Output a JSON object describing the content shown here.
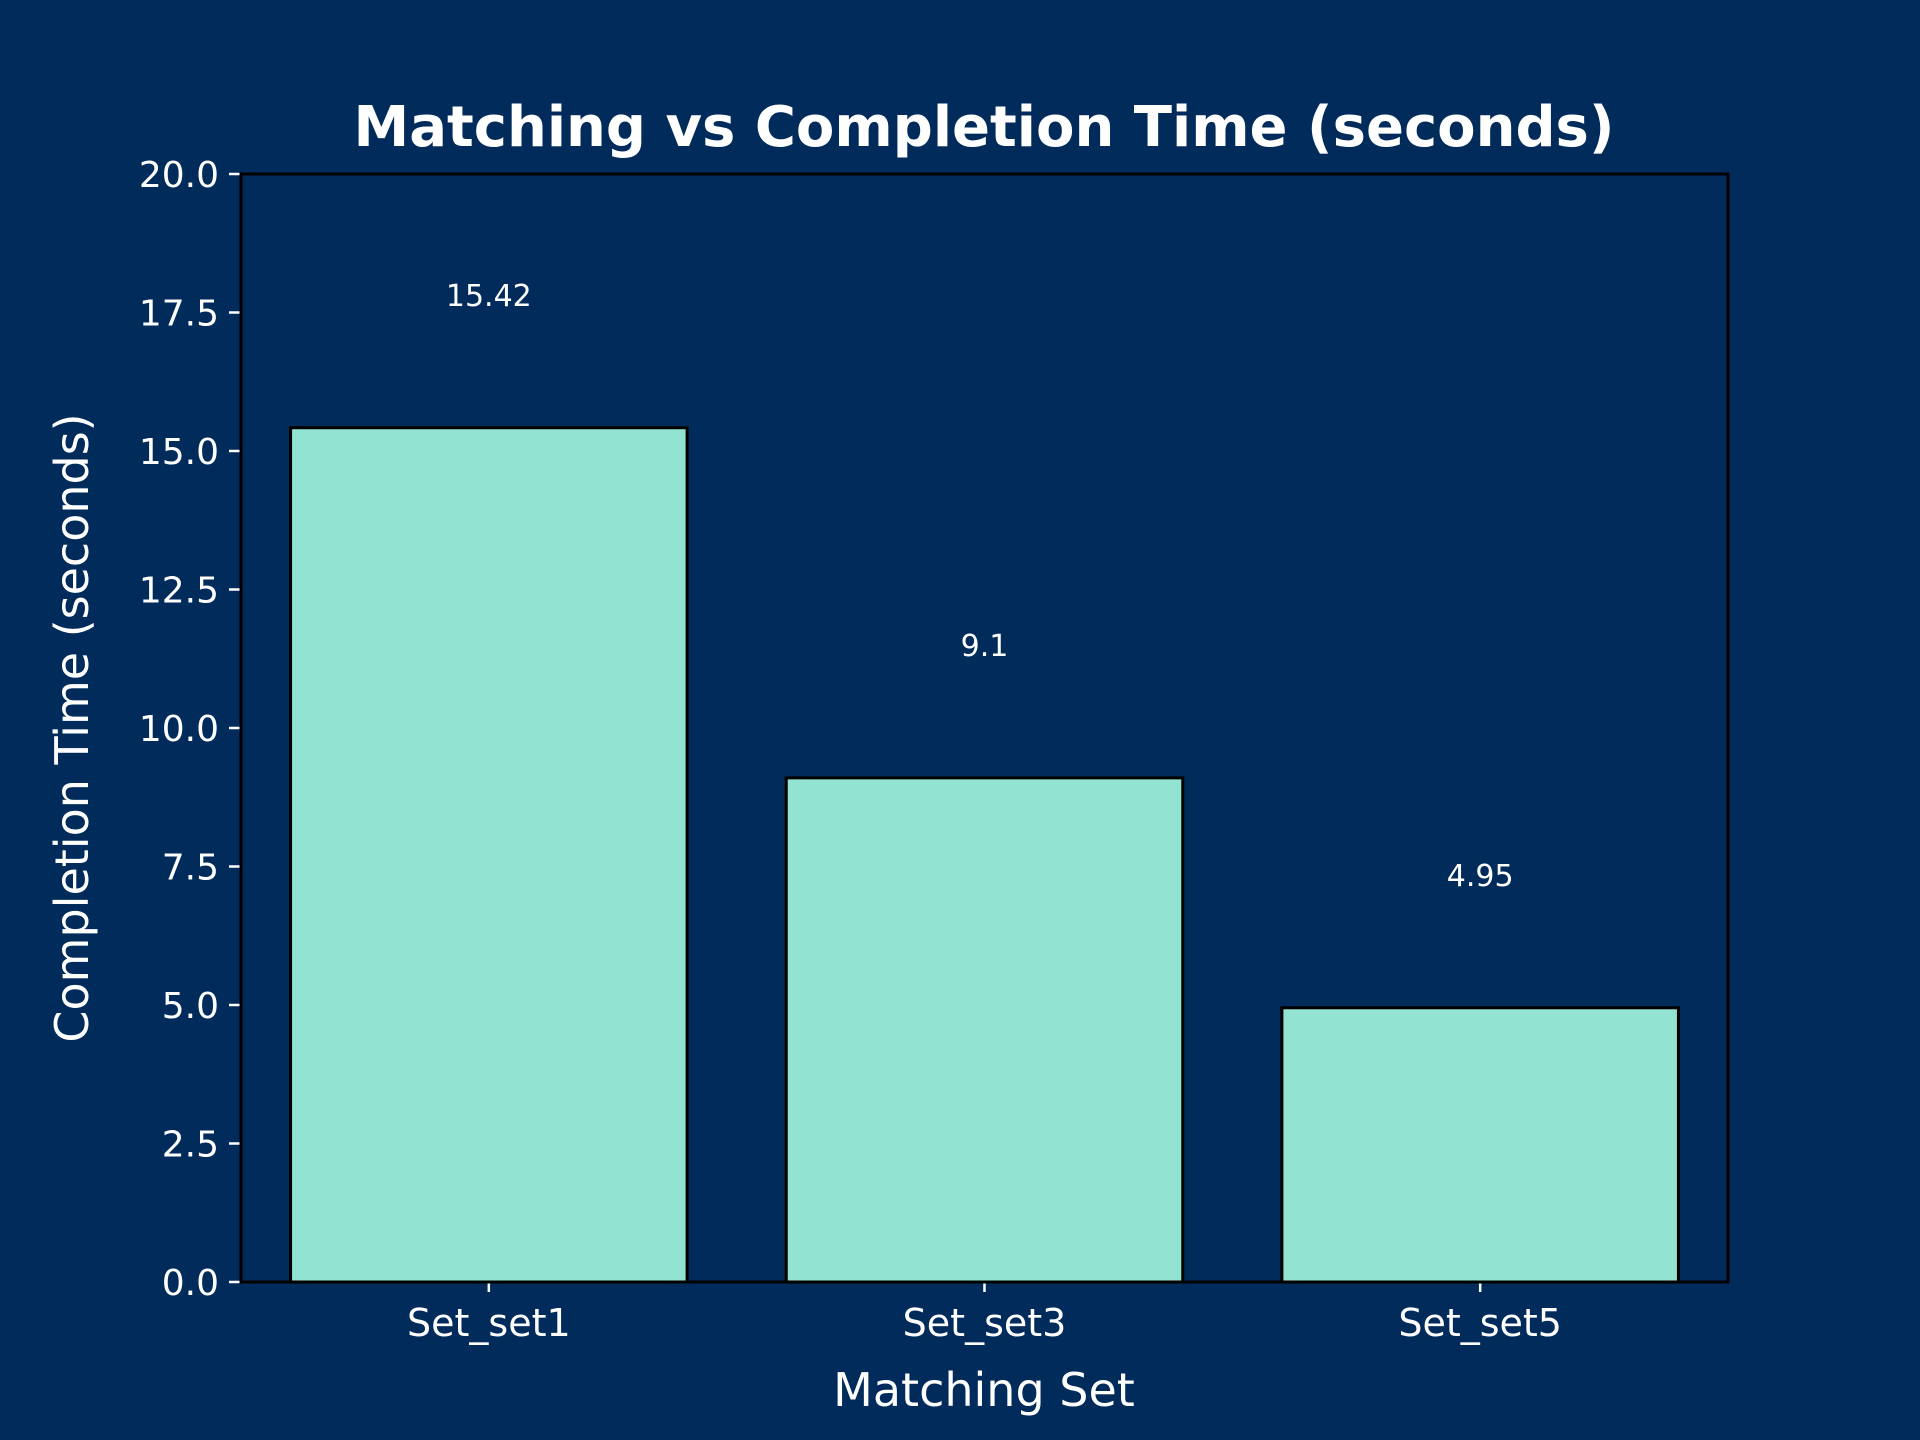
{
  "colors": {
    "background": "#002b5b",
    "bar_fill": "#92e3d1",
    "bar_edge": "#000000",
    "text": "#ffffff",
    "axis": "#000000"
  },
  "chart_data": {
    "type": "bar",
    "title": "Matching vs Completion Time (seconds)",
    "xlabel": "Matching Set",
    "ylabel": "Completion Time (seconds)",
    "categories": [
      "Set_set1",
      "Set_set3",
      "Set_set5"
    ],
    "values": [
      15.42,
      9.1,
      4.95
    ],
    "data_labels": [
      "15.42",
      "9.1",
      "4.95"
    ],
    "ylim": [
      0,
      20
    ],
    "yticks": [
      "0.0",
      "2.5",
      "5.0",
      "7.5",
      "10.0",
      "12.5",
      "15.0",
      "17.5",
      "20.0"
    ],
    "grid": false,
    "legend": "none"
  }
}
